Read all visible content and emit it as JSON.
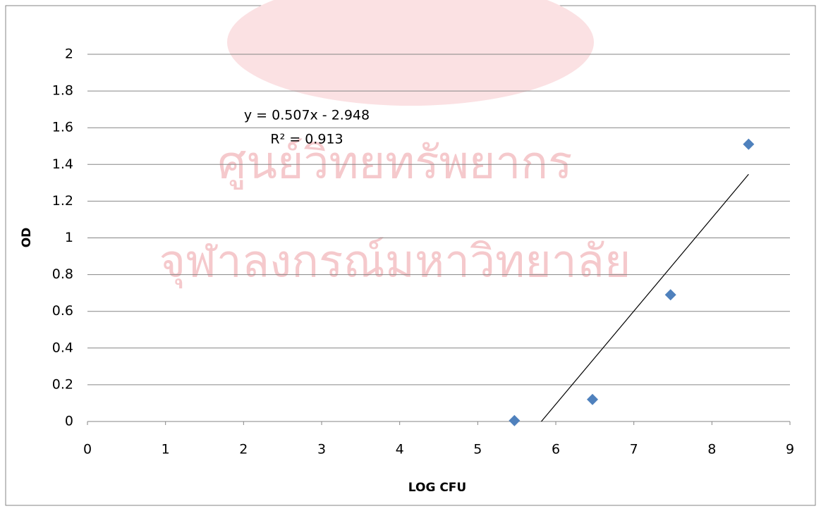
{
  "watermark": [
    "ศูนย์วิทยทรัพยากร",
    "จุฬาลงกรณ์มหาวิทยาลัย"
  ],
  "chart_data": {
    "type": "scatter",
    "x": [
      5.47,
      6.47,
      7.47,
      8.47
    ],
    "series": [
      {
        "name": "OD",
        "color": "#4f81bd",
        "values": [
          0.005,
          0.12,
          0.69,
          1.51
        ]
      }
    ],
    "xlabel": "LOG CFU",
    "ylabel": "OD",
    "xlim": [
      0,
      9
    ],
    "xticks": [
      0,
      1,
      2,
      3,
      4,
      5,
      6,
      7,
      8,
      9
    ],
    "ylim": [
      0,
      2
    ],
    "yticks": [
      0,
      0.2,
      0.4,
      0.6,
      0.8,
      1,
      1.2,
      1.4,
      1.6,
      1.8,
      2
    ],
    "grid": true,
    "trendline": {
      "slope": 0.507,
      "intercept": -2.948,
      "equation": "y = 0.507x - 2.948",
      "r2": "R² = 0.913",
      "color": "#000000"
    }
  }
}
